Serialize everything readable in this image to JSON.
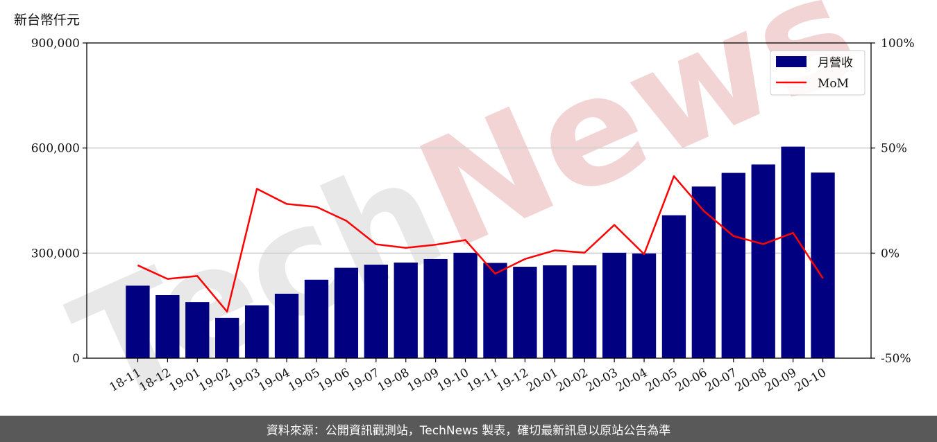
{
  "chart_data": {
    "type": "bar",
    "ylabel": "新台幣仟元",
    "categories": [
      "18-11",
      "18-12",
      "19-01",
      "19-02",
      "19-03",
      "19-04",
      "19-05",
      "19-06",
      "19-07",
      "19-08",
      "19-09",
      "19-10",
      "19-11",
      "19-12",
      "20-01",
      "20-02",
      "20-03",
      "20-04",
      "20-05",
      "20-06",
      "20-07",
      "20-08",
      "20-09",
      "20-10"
    ],
    "series": [
      {
        "name": "月營收",
        "axis": "left",
        "type": "bar",
        "color": "#000080",
        "values": [
          207000,
          180000,
          160000,
          115000,
          151000,
          184000,
          224000,
          258000,
          267000,
          273000,
          283000,
          301000,
          272000,
          261000,
          265000,
          265000,
          301000,
          299000,
          408000,
          490000,
          529000,
          553000,
          604000,
          530000
        ]
      },
      {
        "name": "MoM",
        "axis": "right",
        "type": "line",
        "color": "#ff0000",
        "unit": "%",
        "values": [
          -5.8,
          -12.3,
          -10.9,
          -27.9,
          30.6,
          23.4,
          22.0,
          15.4,
          4.2,
          2.5,
          4.0,
          6.2,
          -9.8,
          -2.8,
          1.3,
          0.2,
          13.4,
          -0.5,
          36.6,
          20.1,
          8.1,
          4.3,
          9.6,
          -12.0
        ]
      }
    ],
    "ylim": [
      0,
      900000
    ],
    "yticks": [
      0,
      300000,
      600000,
      900000
    ],
    "ytick_labels": [
      "0",
      "300,000",
      "600,000",
      "900,000"
    ],
    "y2lim": [
      -50,
      100
    ],
    "y2ticks": [
      -50,
      0,
      50,
      100
    ],
    "y2tick_labels": [
      "-50%",
      "0%",
      "50%",
      "100%"
    ],
    "grid": true,
    "legend": "top-right"
  },
  "watermark": {
    "part1": "Tech",
    "part2": "News"
  },
  "footer": {
    "text": "資料來源：公開資訊觀測站，TechNews 製表，確切最新訊息以原站公告為準"
  }
}
